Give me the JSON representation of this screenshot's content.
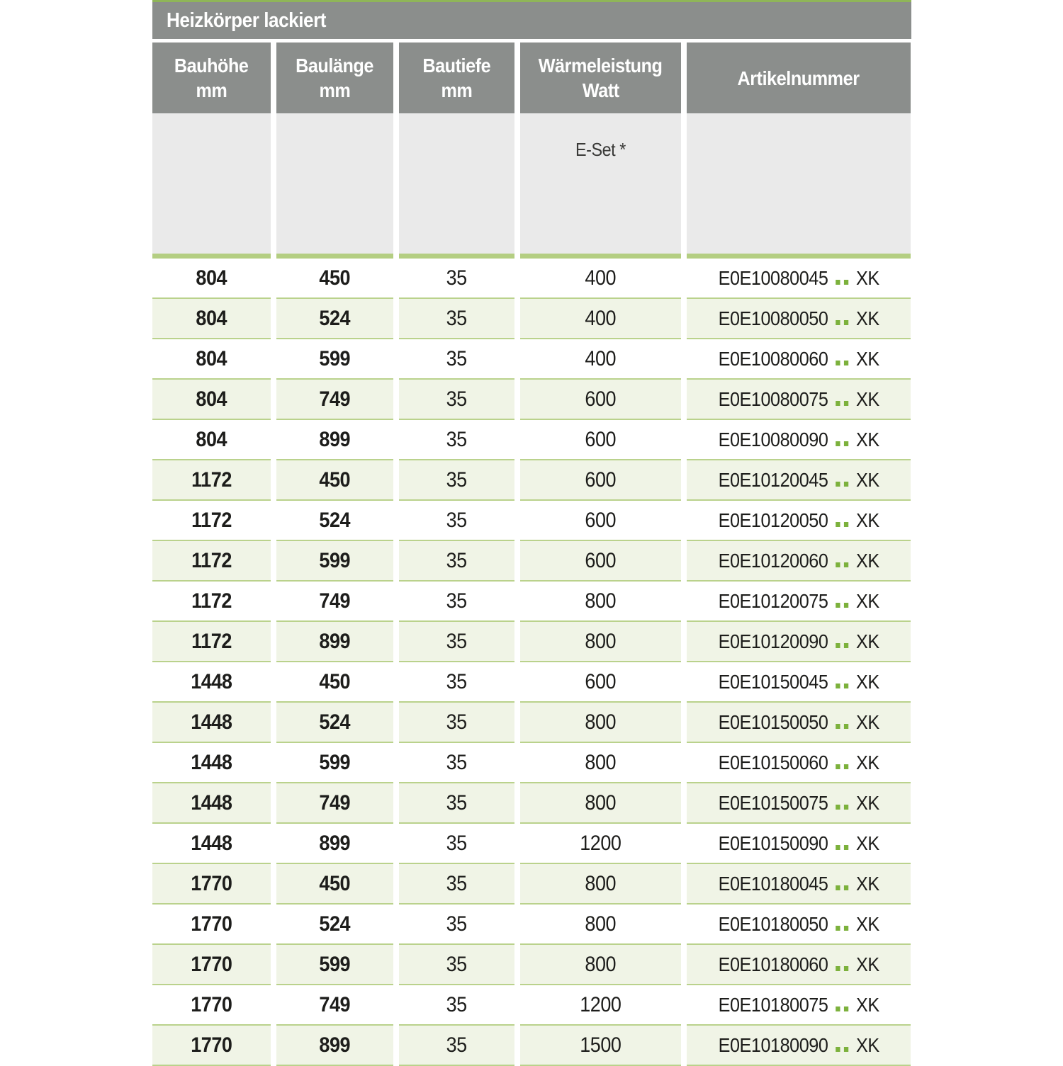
{
  "colors": {
    "accent_green": "#8fb558",
    "bar_green": "#b4ce82",
    "line_green": "#bad28c",
    "row_green_bg": "#f0f4e6",
    "dot_green": "#7cb13c",
    "header_gray": "#8b8e8c",
    "subheader_gray": "#eaeaea",
    "header_text": "#ffffff",
    "text_dark": "#1d1d1b"
  },
  "table": {
    "title": "Heizkörper lackiert",
    "columns": [
      {
        "label": "Bauhöhe",
        "unit": "mm"
      },
      {
        "label": "Baulänge",
        "unit": "mm"
      },
      {
        "label": "Bautiefe",
        "unit": "mm"
      },
      {
        "label": "Wärmeleistung",
        "unit": "Watt"
      },
      {
        "label": "Artikelnummer",
        "unit": ""
      }
    ],
    "subheader": {
      "eset_label": "E-Set *"
    },
    "rows": [
      {
        "bauhoehe": "804",
        "baulaenge": "450",
        "bautiefe": "35",
        "watt": "400",
        "artikel_code": "E0E10080045",
        "artikel_suffix": "XK"
      },
      {
        "bauhoehe": "804",
        "baulaenge": "524",
        "bautiefe": "35",
        "watt": "400",
        "artikel_code": "E0E10080050",
        "artikel_suffix": "XK"
      },
      {
        "bauhoehe": "804",
        "baulaenge": "599",
        "bautiefe": "35",
        "watt": "400",
        "artikel_code": "E0E10080060",
        "artikel_suffix": "XK"
      },
      {
        "bauhoehe": "804",
        "baulaenge": "749",
        "bautiefe": "35",
        "watt": "600",
        "artikel_code": "E0E10080075",
        "artikel_suffix": "XK"
      },
      {
        "bauhoehe": "804",
        "baulaenge": "899",
        "bautiefe": "35",
        "watt": "600",
        "artikel_code": "E0E10080090",
        "artikel_suffix": "XK"
      },
      {
        "bauhoehe": "1172",
        "baulaenge": "450",
        "bautiefe": "35",
        "watt": "600",
        "artikel_code": "E0E10120045",
        "artikel_suffix": "XK"
      },
      {
        "bauhoehe": "1172",
        "baulaenge": "524",
        "bautiefe": "35",
        "watt": "600",
        "artikel_code": "E0E10120050",
        "artikel_suffix": "XK"
      },
      {
        "bauhoehe": "1172",
        "baulaenge": "599",
        "bautiefe": "35",
        "watt": "600",
        "artikel_code": "E0E10120060",
        "artikel_suffix": "XK"
      },
      {
        "bauhoehe": "1172",
        "baulaenge": "749",
        "bautiefe": "35",
        "watt": "800",
        "artikel_code": "E0E10120075",
        "artikel_suffix": "XK"
      },
      {
        "bauhoehe": "1172",
        "baulaenge": "899",
        "bautiefe": "35",
        "watt": "800",
        "artikel_code": "E0E10120090",
        "artikel_suffix": "XK"
      },
      {
        "bauhoehe": "1448",
        "baulaenge": "450",
        "bautiefe": "35",
        "watt": "600",
        "artikel_code": "E0E10150045",
        "artikel_suffix": "XK"
      },
      {
        "bauhoehe": "1448",
        "baulaenge": "524",
        "bautiefe": "35",
        "watt": "800",
        "artikel_code": "E0E10150050",
        "artikel_suffix": "XK"
      },
      {
        "bauhoehe": "1448",
        "baulaenge": "599",
        "bautiefe": "35",
        "watt": "800",
        "artikel_code": "E0E10150060",
        "artikel_suffix": "XK"
      },
      {
        "bauhoehe": "1448",
        "baulaenge": "749",
        "bautiefe": "35",
        "watt": "800",
        "artikel_code": "E0E10150075",
        "artikel_suffix": "XK"
      },
      {
        "bauhoehe": "1448",
        "baulaenge": "899",
        "bautiefe": "35",
        "watt": "1200",
        "artikel_code": "E0E10150090",
        "artikel_suffix": "XK"
      },
      {
        "bauhoehe": "1770",
        "baulaenge": "450",
        "bautiefe": "35",
        "watt": "800",
        "artikel_code": "E0E10180045",
        "artikel_suffix": "XK"
      },
      {
        "bauhoehe": "1770",
        "baulaenge": "524",
        "bautiefe": "35",
        "watt": "800",
        "artikel_code": "E0E10180050",
        "artikel_suffix": "XK"
      },
      {
        "bauhoehe": "1770",
        "baulaenge": "599",
        "bautiefe": "35",
        "watt": "800",
        "artikel_code": "E0E10180060",
        "artikel_suffix": "XK"
      },
      {
        "bauhoehe": "1770",
        "baulaenge": "749",
        "bautiefe": "35",
        "watt": "1200",
        "artikel_code": "E0E10180075",
        "artikel_suffix": "XK"
      },
      {
        "bauhoehe": "1770",
        "baulaenge": "899",
        "bautiefe": "35",
        "watt": "1500",
        "artikel_code": "E0E10180090",
        "artikel_suffix": "XK"
      }
    ]
  }
}
